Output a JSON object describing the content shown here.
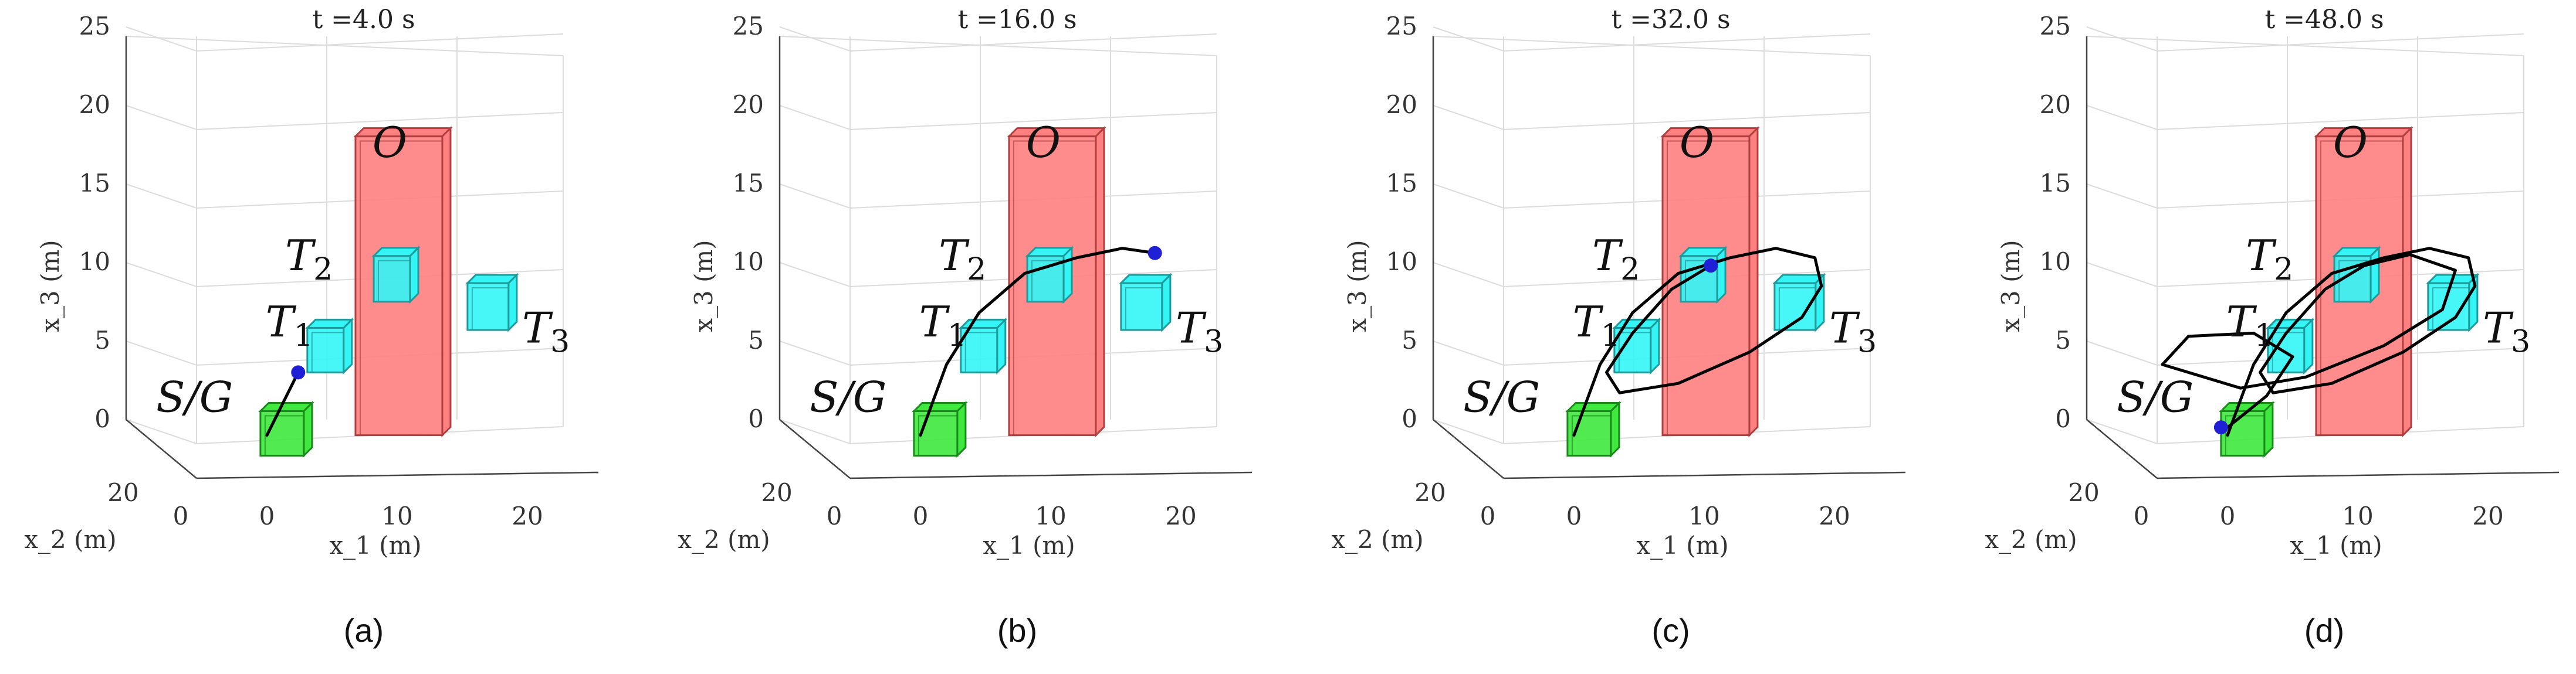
{
  "chart_data": [
    {
      "type": "3d-trajectory",
      "title": "t =4.0 s",
      "caption": "(a)",
      "xlabel": "x_1 (m)",
      "ylabel": "x_2 (m)",
      "zlabel": "x_3 (m)",
      "x_ticks": [
        "0",
        "10",
        "20"
      ],
      "y_ticks": [
        "0",
        "20"
      ],
      "z_ticks": [
        "0",
        "5",
        "10",
        "15",
        "20",
        "25"
      ],
      "zlim": [
        0,
        25
      ],
      "labels": {
        "start_goal": "S/G",
        "obstacle": "O",
        "t1": "T",
        "t2": "T",
        "t3": "T",
        "s1": "1",
        "s2": "2",
        "s3": "3"
      },
      "trajectory": [
        [
          0.0,
          0.5
        ],
        [
          1.2,
          2.5
        ],
        [
          2.4,
          4.5
        ]
      ],
      "current_position": [
        2.4,
        4.5
      ]
    },
    {
      "type": "3d-trajectory",
      "title": "t =16.0 s",
      "caption": "(b)",
      "xlabel": "x_1 (m)",
      "ylabel": "x_2 (m)",
      "zlabel": "x_3 (m)",
      "x_ticks": [
        "0",
        "10",
        "20"
      ],
      "y_ticks": [
        "0",
        "20"
      ],
      "z_ticks": [
        "0",
        "5",
        "10",
        "15",
        "20",
        "25"
      ],
      "zlim": [
        0,
        25
      ],
      "labels": {
        "start_goal": "S/G",
        "obstacle": "O",
        "t1": "T",
        "t2": "T",
        "t3": "T",
        "s1": "1",
        "s2": "2",
        "s3": "3"
      },
      "trajectory": [
        [
          0.0,
          0.5
        ],
        [
          2.0,
          5.0
        ],
        [
          4.5,
          8.3
        ],
        [
          8.0,
          10.8
        ],
        [
          12.0,
          11.8
        ],
        [
          15.5,
          12.4
        ],
        [
          18.0,
          12.1
        ]
      ],
      "current_position": [
        18.0,
        12.1
      ]
    },
    {
      "type": "3d-trajectory",
      "title": "t =32.0 s",
      "caption": "(c)",
      "xlabel": "x_1 (m)",
      "ylabel": "x_2 (m)",
      "zlabel": "x_3 (m)",
      "x_ticks": [
        "0",
        "10",
        "20"
      ],
      "y_ticks": [
        "0",
        "20"
      ],
      "z_ticks": [
        "0",
        "5",
        "10",
        "15",
        "20",
        "25"
      ],
      "zlim": [
        0,
        25
      ],
      "labels": {
        "start_goal": "S/G",
        "obstacle": "O",
        "t1": "T",
        "t2": "T",
        "t3": "T",
        "s1": "1",
        "s2": "2",
        "s3": "3"
      },
      "trajectory": [
        [
          0.0,
          0.5
        ],
        [
          2.0,
          5.0
        ],
        [
          4.5,
          8.3
        ],
        [
          8.0,
          10.8
        ],
        [
          12.0,
          11.8
        ],
        [
          15.5,
          12.4
        ],
        [
          18.5,
          11.8
        ],
        [
          19.0,
          10.0
        ],
        [
          17.5,
          8.0
        ],
        [
          13.5,
          5.8
        ],
        [
          8.0,
          3.8
        ],
        [
          3.5,
          3.2
        ],
        [
          2.5,
          4.5
        ],
        [
          4.5,
          7.0
        ],
        [
          7.5,
          9.8
        ],
        [
          10.5,
          11.3
        ]
      ],
      "current_position": [
        10.5,
        11.3
      ]
    },
    {
      "type": "3d-trajectory",
      "title": "t =48.0 s",
      "caption": "(d)",
      "xlabel": "x_1 (m)",
      "ylabel": "x_2 (m)",
      "zlabel": "x_3 (m)",
      "x_ticks": [
        "0",
        "10",
        "20"
      ],
      "y_ticks": [
        "0",
        "20"
      ],
      "z_ticks": [
        "0",
        "5",
        "10",
        "15",
        "20",
        "25"
      ],
      "zlim": [
        0,
        25
      ],
      "labels": {
        "start_goal": "S/G",
        "obstacle": "O",
        "t1": "T",
        "t2": "T",
        "t3": "T",
        "s1": "1",
        "s2": "2",
        "s3": "3"
      },
      "trajectory": [
        [
          0.0,
          0.5
        ],
        [
          2.0,
          5.0
        ],
        [
          4.5,
          8.3
        ],
        [
          8.0,
          10.8
        ],
        [
          12.0,
          11.8
        ],
        [
          15.5,
          12.4
        ],
        [
          18.5,
          11.8
        ],
        [
          19.0,
          10.0
        ],
        [
          17.5,
          8.0
        ],
        [
          13.5,
          5.8
        ],
        [
          8.0,
          3.8
        ],
        [
          3.5,
          3.2
        ],
        [
          2.5,
          4.5
        ],
        [
          4.5,
          7.0
        ],
        [
          7.5,
          9.8
        ],
        [
          10.5,
          11.3
        ],
        [
          14.0,
          12.0
        ],
        [
          17.5,
          11.0
        ],
        [
          16.5,
          8.5
        ],
        [
          12.0,
          6.2
        ],
        [
          6.0,
          4.2
        ],
        [
          1.0,
          3.5
        ],
        [
          -5.0,
          5.0
        ],
        [
          -3.0,
          6.8
        ],
        [
          2.0,
          7.0
        ],
        [
          5.0,
          5.5
        ],
        [
          3.0,
          3.0
        ],
        [
          0.0,
          1.0
        ],
        [
          -0.5,
          1.0
        ]
      ],
      "current_position": [
        -0.5,
        1.0
      ]
    }
  ],
  "colors": {
    "obstacle_fill": "#ff8080",
    "obstacle_edge": "#b04040",
    "target_fill": "#33f5f5",
    "target_edge": "#1e9a9a",
    "start_fill": "#3ee83e",
    "start_edge": "#1a8a1a",
    "trajectory": "#000000",
    "current_position": "#1f1fd6"
  }
}
